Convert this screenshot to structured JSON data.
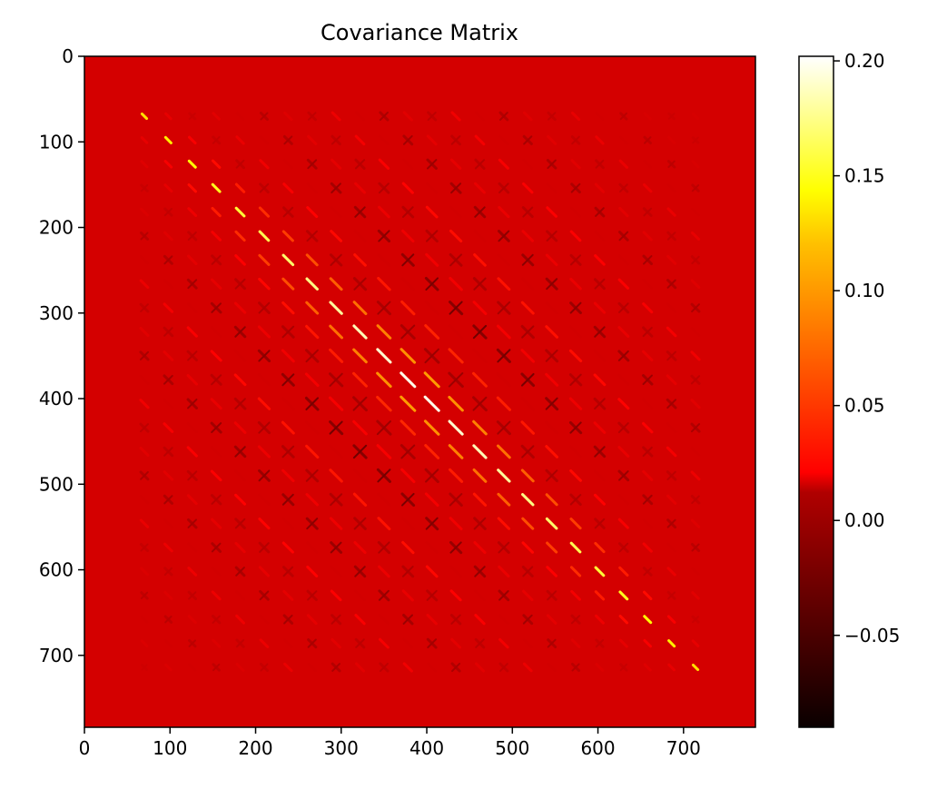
{
  "chart_data": {
    "type": "heatmap",
    "title": "Covariance Matrix",
    "xlabel": "",
    "ylabel": "",
    "shape": [
      784,
      784
    ],
    "xlim": [
      0,
      784
    ],
    "ylim": [
      784,
      0
    ],
    "x_ticks": [
      0,
      100,
      200,
      300,
      400,
      500,
      600,
      700
    ],
    "y_ticks": [
      0,
      100,
      200,
      300,
      400,
      500,
      600,
      700
    ],
    "x_tick_labels": [
      "0",
      "100",
      "200",
      "300",
      "400",
      "500",
      "600",
      "700"
    ],
    "y_tick_labels": [
      "0",
      "100",
      "200",
      "300",
      "400",
      "500",
      "600",
      "700"
    ],
    "colormap": "hot",
    "colorbar": {
      "vmin": -0.09,
      "vmax": 0.202,
      "ticks": [
        -0.05,
        0.0,
        0.05,
        0.1,
        0.15,
        0.2
      ],
      "tick_labels": [
        "−0.05",
        "0.00",
        "0.05",
        "0.10",
        "0.15",
        "0.20"
      ]
    },
    "background_value": 0.0,
    "structure": {
      "block_size": 28,
      "blocks_per_side": 28,
      "active_block_range": [
        2,
        26
      ],
      "diagonal_peak": 0.2
    },
    "grid": false
  }
}
